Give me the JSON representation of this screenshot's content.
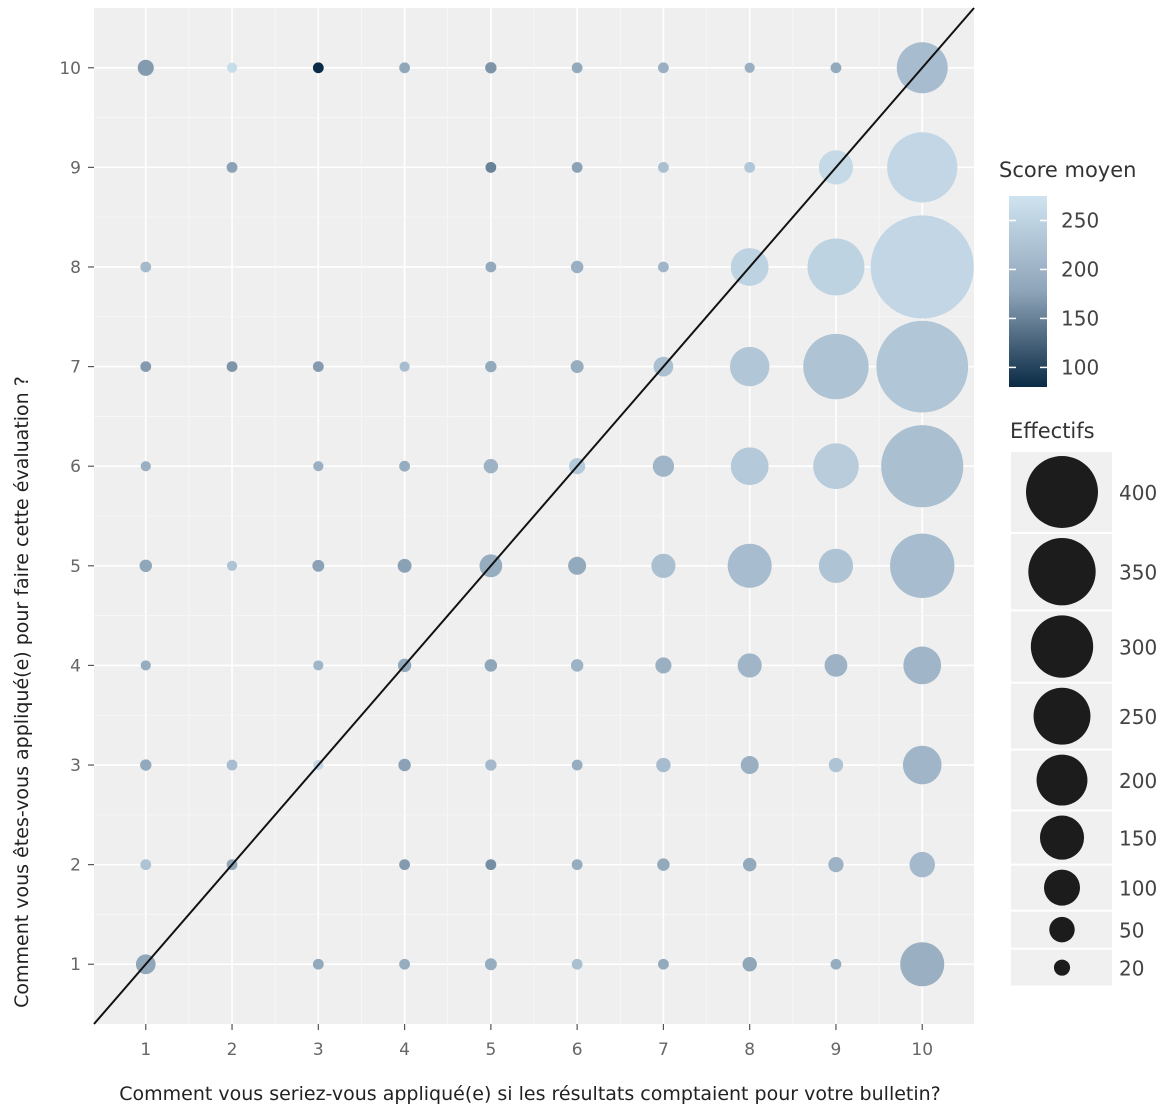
{
  "chart_data": {
    "type": "scatter",
    "title": "",
    "xlabel": "Comment vous seriez-vous appliqué(e) si les résultats comptaient pour votre bulletin?",
    "ylabel": "Comment vous êtes-vous appliqué(e) pour faire cette évaluation ?",
    "xlim": [
      0.4,
      10.6
    ],
    "ylim": [
      0.4,
      10.6
    ],
    "x_ticks": [
      "1",
      "2",
      "3",
      "4",
      "5",
      "6",
      "7",
      "8",
      "9",
      "10"
    ],
    "y_ticks": [
      "1",
      "2",
      "3",
      "4",
      "5",
      "6",
      "7",
      "8",
      "9",
      "10"
    ],
    "grid": true,
    "reference_line": "y = x",
    "legend_position": "right",
    "color_legend": {
      "title": "Score moyen",
      "breaks": [
        "250",
        "200",
        "150",
        "100"
      ],
      "range": [
        80,
        275
      ],
      "low_color": "#0a2a45",
      "mid_color": "#8ea4b8",
      "high_color": "#cfe3f0"
    },
    "size_legend": {
      "title": "Effectifs",
      "breaks": [
        "400",
        "350",
        "300",
        "250",
        "200",
        "150",
        "100",
        "50",
        "20"
      ]
    },
    "points": [
      {
        "x": 1,
        "y": 10,
        "n": 20,
        "score": 170
      },
      {
        "x": 2,
        "y": 10,
        "n": 8,
        "score": 265
      },
      {
        "x": 3,
        "y": 10,
        "n": 9,
        "score": 80
      },
      {
        "x": 4,
        "y": 10,
        "n": 9,
        "score": 180
      },
      {
        "x": 5,
        "y": 10,
        "n": 10,
        "score": 165
      },
      {
        "x": 6,
        "y": 10,
        "n": 9,
        "score": 185
      },
      {
        "x": 7,
        "y": 10,
        "n": 9,
        "score": 195
      },
      {
        "x": 8,
        "y": 10,
        "n": 8,
        "score": 195
      },
      {
        "x": 9,
        "y": 10,
        "n": 9,
        "score": 185
      },
      {
        "x": 10,
        "y": 10,
        "n": 200,
        "score": 215
      },
      {
        "x": 2,
        "y": 9,
        "n": 9,
        "score": 175
      },
      {
        "x": 5,
        "y": 9,
        "n": 9,
        "score": 150
      },
      {
        "x": 6,
        "y": 9,
        "n": 9,
        "score": 175
      },
      {
        "x": 7,
        "y": 9,
        "n": 9,
        "score": 220
      },
      {
        "x": 8,
        "y": 9,
        "n": 9,
        "score": 230
      },
      {
        "x": 9,
        "y": 9,
        "n": 90,
        "score": 260
      },
      {
        "x": 10,
        "y": 9,
        "n": 380,
        "score": 255
      },
      {
        "x": 1,
        "y": 8,
        "n": 9,
        "score": 210
      },
      {
        "x": 5,
        "y": 8,
        "n": 9,
        "score": 185
      },
      {
        "x": 6,
        "y": 8,
        "n": 12,
        "score": 195
      },
      {
        "x": 7,
        "y": 8,
        "n": 9,
        "score": 205
      },
      {
        "x": 8,
        "y": 8,
        "n": 110,
        "score": 250
      },
      {
        "x": 9,
        "y": 8,
        "n": 250,
        "score": 250
      },
      {
        "x": 10,
        "y": 8,
        "n": 820,
        "score": 255
      },
      {
        "x": 1,
        "y": 7,
        "n": 9,
        "score": 170
      },
      {
        "x": 2,
        "y": 7,
        "n": 9,
        "score": 165
      },
      {
        "x": 3,
        "y": 7,
        "n": 9,
        "score": 170
      },
      {
        "x": 4,
        "y": 7,
        "n": 8,
        "score": 215
      },
      {
        "x": 5,
        "y": 7,
        "n": 10,
        "score": 185
      },
      {
        "x": 6,
        "y": 7,
        "n": 13,
        "score": 190
      },
      {
        "x": 7,
        "y": 7,
        "n": 30,
        "score": 220
      },
      {
        "x": 8,
        "y": 7,
        "n": 120,
        "score": 230
      },
      {
        "x": 9,
        "y": 7,
        "n": 330,
        "score": 225
      },
      {
        "x": 10,
        "y": 7,
        "n": 650,
        "score": 230
      },
      {
        "x": 1,
        "y": 6,
        "n": 8,
        "score": 195
      },
      {
        "x": 3,
        "y": 6,
        "n": 8,
        "score": 195
      },
      {
        "x": 4,
        "y": 6,
        "n": 9,
        "score": 190
      },
      {
        "x": 5,
        "y": 6,
        "n": 16,
        "score": 200
      },
      {
        "x": 6,
        "y": 6,
        "n": 20,
        "score": 235
      },
      {
        "x": 7,
        "y": 6,
        "n": 35,
        "score": 205
      },
      {
        "x": 8,
        "y": 6,
        "n": 110,
        "score": 235
      },
      {
        "x": 9,
        "y": 6,
        "n": 160,
        "score": 240
      },
      {
        "x": 10,
        "y": 6,
        "n": 520,
        "score": 220
      },
      {
        "x": 1,
        "y": 5,
        "n": 12,
        "score": 180
      },
      {
        "x": 2,
        "y": 5,
        "n": 8,
        "score": 225
      },
      {
        "x": 3,
        "y": 5,
        "n": 11,
        "score": 175
      },
      {
        "x": 4,
        "y": 5,
        "n": 15,
        "score": 175
      },
      {
        "x": 5,
        "y": 5,
        "n": 40,
        "score": 190
      },
      {
        "x": 6,
        "y": 5,
        "n": 25,
        "score": 185
      },
      {
        "x": 7,
        "y": 5,
        "n": 45,
        "score": 220
      },
      {
        "x": 8,
        "y": 5,
        "n": 150,
        "score": 215
      },
      {
        "x": 9,
        "y": 5,
        "n": 90,
        "score": 225
      },
      {
        "x": 10,
        "y": 5,
        "n": 320,
        "score": 215
      },
      {
        "x": 1,
        "y": 4,
        "n": 8,
        "score": 190
      },
      {
        "x": 3,
        "y": 4,
        "n": 8,
        "score": 205
      },
      {
        "x": 4,
        "y": 4,
        "n": 14,
        "score": 185
      },
      {
        "x": 5,
        "y": 4,
        "n": 12,
        "score": 180
      },
      {
        "x": 6,
        "y": 4,
        "n": 12,
        "score": 200
      },
      {
        "x": 7,
        "y": 4,
        "n": 20,
        "score": 195
      },
      {
        "x": 8,
        "y": 4,
        "n": 45,
        "score": 205
      },
      {
        "x": 9,
        "y": 4,
        "n": 40,
        "score": 200
      },
      {
        "x": 10,
        "y": 4,
        "n": 110,
        "score": 205
      },
      {
        "x": 1,
        "y": 3,
        "n": 10,
        "score": 185
      },
      {
        "x": 2,
        "y": 3,
        "n": 9,
        "score": 215
      },
      {
        "x": 3,
        "y": 3,
        "n": 8,
        "score": 255
      },
      {
        "x": 4,
        "y": 3,
        "n": 12,
        "score": 175
      },
      {
        "x": 5,
        "y": 3,
        "n": 10,
        "score": 210
      },
      {
        "x": 6,
        "y": 3,
        "n": 9,
        "score": 190
      },
      {
        "x": 7,
        "y": 3,
        "n": 16,
        "score": 215
      },
      {
        "x": 8,
        "y": 3,
        "n": 25,
        "score": 195
      },
      {
        "x": 9,
        "y": 3,
        "n": 16,
        "score": 225
      },
      {
        "x": 10,
        "y": 3,
        "n": 115,
        "score": 205
      },
      {
        "x": 1,
        "y": 2,
        "n": 9,
        "score": 225
      },
      {
        "x": 2,
        "y": 2,
        "n": 9,
        "score": 180
      },
      {
        "x": 4,
        "y": 2,
        "n": 9,
        "score": 170
      },
      {
        "x": 5,
        "y": 2,
        "n": 9,
        "score": 160
      },
      {
        "x": 6,
        "y": 2,
        "n": 9,
        "score": 190
      },
      {
        "x": 7,
        "y": 2,
        "n": 12,
        "score": 185
      },
      {
        "x": 8,
        "y": 2,
        "n": 14,
        "score": 185
      },
      {
        "x": 9,
        "y": 2,
        "n": 18,
        "score": 200
      },
      {
        "x": 10,
        "y": 2,
        "n": 50,
        "score": 210
      },
      {
        "x": 1,
        "y": 1,
        "n": 30,
        "score": 180
      },
      {
        "x": 3,
        "y": 1,
        "n": 9,
        "score": 185
      },
      {
        "x": 4,
        "y": 1,
        "n": 9,
        "score": 190
      },
      {
        "x": 5,
        "y": 1,
        "n": 11,
        "score": 190
      },
      {
        "x": 6,
        "y": 1,
        "n": 9,
        "score": 220
      },
      {
        "x": 7,
        "y": 1,
        "n": 9,
        "score": 185
      },
      {
        "x": 8,
        "y": 1,
        "n": 16,
        "score": 180
      },
      {
        "x": 9,
        "y": 1,
        "n": 9,
        "score": 190
      },
      {
        "x": 10,
        "y": 1,
        "n": 150,
        "score": 195
      }
    ]
  }
}
